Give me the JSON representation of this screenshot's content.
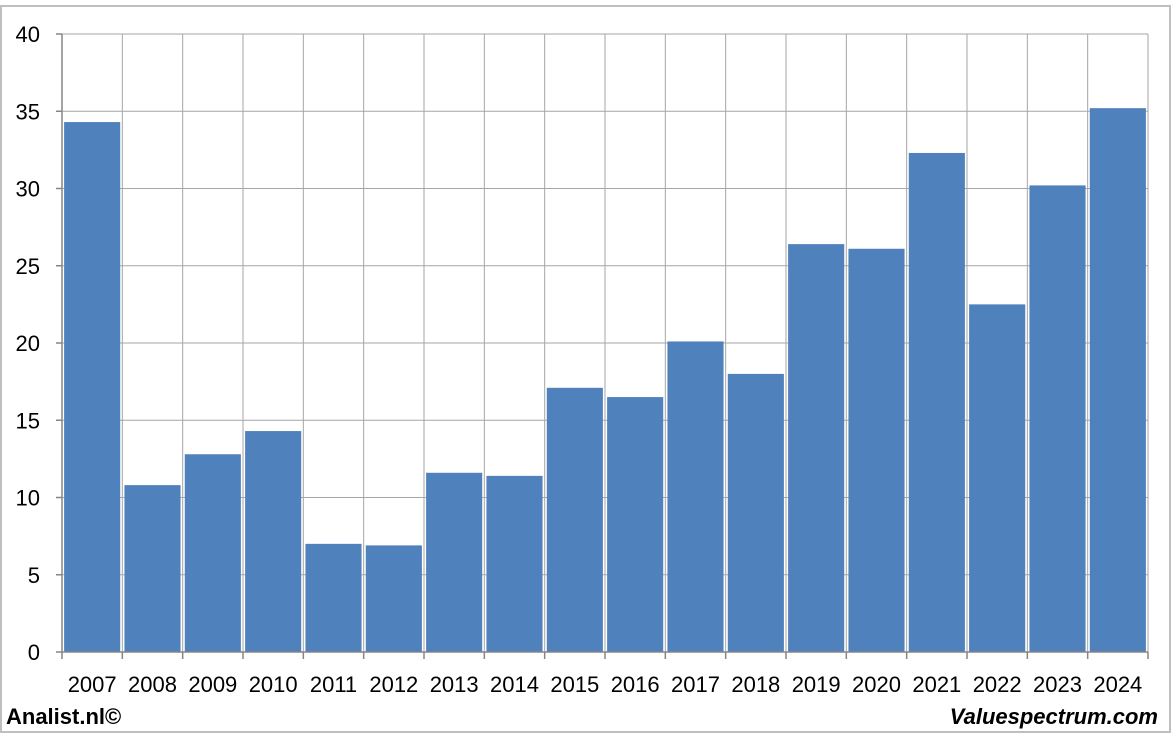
{
  "footer": {
    "left": "Analist.nl©",
    "right": "Valuespectrum.com"
  },
  "colors": {
    "bar": "#4f81bd",
    "grid": "#a6a6a6",
    "axis": "#868686",
    "border": "#bfbfbf"
  },
  "chart_data": {
    "type": "bar",
    "title": "",
    "xlabel": "",
    "ylabel": "",
    "categories": [
      "2007",
      "2008",
      "2009",
      "2010",
      "2011",
      "2012",
      "2013",
      "2014",
      "2015",
      "2016",
      "2017",
      "2018",
      "2019",
      "2020",
      "2021",
      "2022",
      "2023",
      "2024"
    ],
    "values": [
      34.3,
      10.8,
      12.8,
      14.3,
      7.0,
      6.9,
      11.6,
      11.4,
      17.1,
      16.5,
      20.1,
      18.0,
      26.4,
      26.1,
      32.3,
      22.5,
      30.2,
      35.2
    ],
    "ylim": [
      0,
      40
    ],
    "yticks": [
      "0",
      "5",
      "10",
      "15",
      "20",
      "25",
      "30",
      "35",
      "40"
    ],
    "grid": true,
    "legend": "none"
  }
}
